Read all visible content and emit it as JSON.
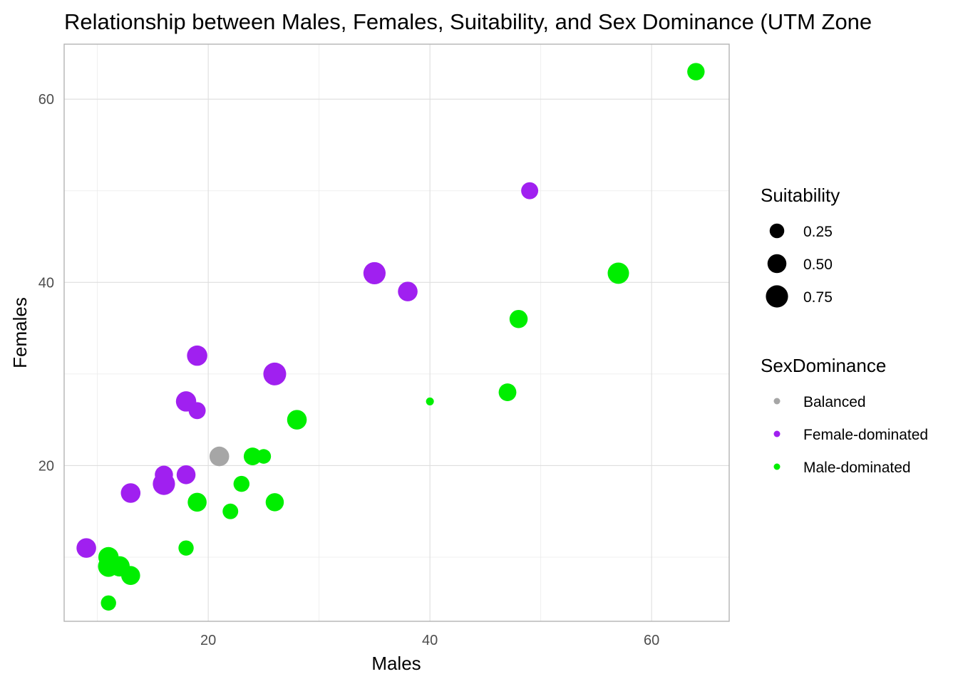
{
  "chart_data": {
    "type": "scatter",
    "title": "Relationship between Males, Females, Suitability, and Sex Dominance (UTM Zone",
    "xlabel": "Males",
    "ylabel": "Females",
    "xlim": [
      7,
      67
    ],
    "ylim": [
      3,
      66
    ],
    "x_ticks": [
      20,
      40,
      60
    ],
    "y_ticks": [
      20,
      40,
      60
    ],
    "x_minor_ticks": [
      10,
      30,
      50
    ],
    "y_minor_ticks": [
      10,
      30,
      50
    ],
    "grid": true,
    "legend_position": "right",
    "size_legend": {
      "title": "Suitability",
      "entries": [
        {
          "label": "0.25",
          "value": 0.25
        },
        {
          "label": "0.50",
          "value": 0.5
        },
        {
          "label": "0.75",
          "value": 0.75
        }
      ]
    },
    "color_legend": {
      "title": "SexDominance",
      "entries": [
        {
          "label": "Balanced",
          "color": "#a6a6a6"
        },
        {
          "label": "Female-dominated",
          "color": "#a020f0"
        },
        {
          "label": "Male-dominated",
          "color": "#00ee00"
        }
      ]
    },
    "points": [
      {
        "x": 64,
        "y": 63,
        "suitability": 0.4,
        "group": "Male-dominated"
      },
      {
        "x": 49,
        "y": 50,
        "suitability": 0.38,
        "group": "Female-dominated"
      },
      {
        "x": 57,
        "y": 41,
        "suitability": 0.68,
        "group": "Male-dominated"
      },
      {
        "x": 35,
        "y": 41,
        "suitability": 0.75,
        "group": "Female-dominated"
      },
      {
        "x": 38,
        "y": 39,
        "suitability": 0.55,
        "group": "Female-dominated"
      },
      {
        "x": 48,
        "y": 36,
        "suitability": 0.45,
        "group": "Male-dominated"
      },
      {
        "x": 19,
        "y": 32,
        "suitability": 0.6,
        "group": "Female-dominated"
      },
      {
        "x": 26,
        "y": 30,
        "suitability": 0.8,
        "group": "Female-dominated"
      },
      {
        "x": 47,
        "y": 28,
        "suitability": 0.42,
        "group": "Male-dominated"
      },
      {
        "x": 40,
        "y": 27,
        "suitability": 0.03,
        "group": "Male-dominated"
      },
      {
        "x": 18,
        "y": 27,
        "suitability": 0.6,
        "group": "Female-dominated"
      },
      {
        "x": 19,
        "y": 26,
        "suitability": 0.38,
        "group": "Female-dominated"
      },
      {
        "x": 28,
        "y": 25,
        "suitability": 0.55,
        "group": "Male-dominated"
      },
      {
        "x": 21,
        "y": 21,
        "suitability": 0.55,
        "group": "Balanced"
      },
      {
        "x": 24,
        "y": 21,
        "suitability": 0.42,
        "group": "Male-dominated"
      },
      {
        "x": 25,
        "y": 21,
        "suitability": 0.25,
        "group": "Male-dominated"
      },
      {
        "x": 16,
        "y": 19,
        "suitability": 0.45,
        "group": "Female-dominated"
      },
      {
        "x": 18,
        "y": 19,
        "suitability": 0.5,
        "group": "Female-dominated"
      },
      {
        "x": 16,
        "y": 18,
        "suitability": 0.75,
        "group": "Female-dominated"
      },
      {
        "x": 23,
        "y": 18,
        "suitability": 0.32,
        "group": "Male-dominated"
      },
      {
        "x": 13,
        "y": 17,
        "suitability": 0.55,
        "group": "Female-dominated"
      },
      {
        "x": 19,
        "y": 16,
        "suitability": 0.5,
        "group": "Male-dominated"
      },
      {
        "x": 26,
        "y": 16,
        "suitability": 0.45,
        "group": "Male-dominated"
      },
      {
        "x": 22,
        "y": 15,
        "suitability": 0.3,
        "group": "Male-dominated"
      },
      {
        "x": 9,
        "y": 11,
        "suitability": 0.55,
        "group": "Female-dominated"
      },
      {
        "x": 18,
        "y": 11,
        "suitability": 0.28,
        "group": "Male-dominated"
      },
      {
        "x": 11,
        "y": 10,
        "suitability": 0.6,
        "group": "Male-dominated"
      },
      {
        "x": 12,
        "y": 9,
        "suitability": 0.6,
        "group": "Male-dominated"
      },
      {
        "x": 11,
        "y": 9,
        "suitability": 0.65,
        "group": "Male-dominated"
      },
      {
        "x": 13,
        "y": 8,
        "suitability": 0.5,
        "group": "Male-dominated"
      },
      {
        "x": 11,
        "y": 5,
        "suitability": 0.28,
        "group": "Male-dominated"
      }
    ]
  }
}
